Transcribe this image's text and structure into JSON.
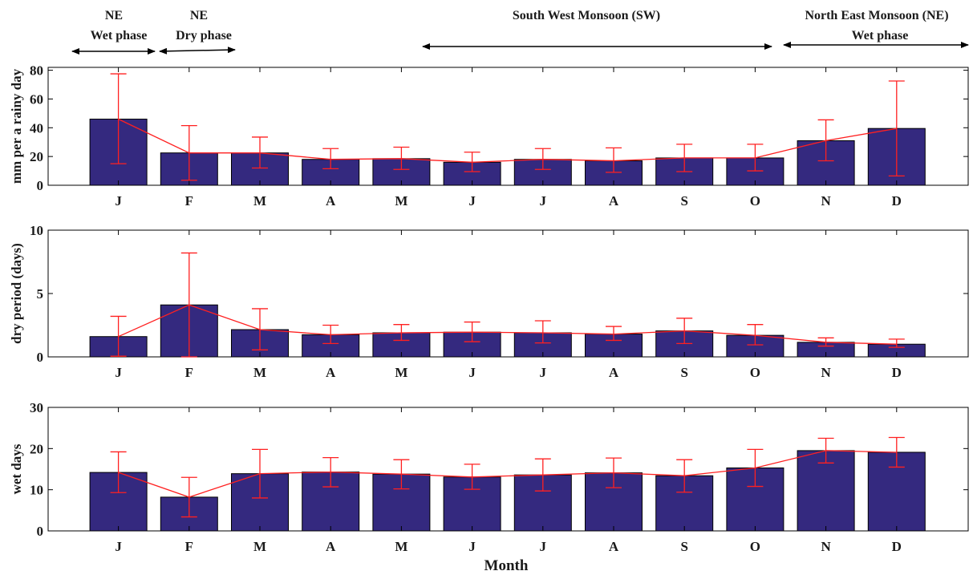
{
  "header": {
    "phases": [
      {
        "lines": [
          "NE",
          "Wet phase"
        ]
      },
      {
        "lines": [
          "NE",
          "Dry phase"
        ]
      },
      {
        "lines": [
          "South West Monsoon (SW)"
        ]
      },
      {
        "lines": [
          "North East Monsoon (NE)",
          "Wet phase"
        ]
      }
    ]
  },
  "colors": {
    "bar": "#34297f",
    "bar_edge": "#000000",
    "line": "#ff2020",
    "axis": "#000000"
  },
  "chart_data": [
    {
      "type": "bar",
      "categories": [
        "J",
        "F",
        "M",
        "A",
        "M",
        "J",
        "J",
        "A",
        "S",
        "O",
        "N",
        "D"
      ],
      "values": [
        46,
        22.5,
        22.5,
        18,
        18.5,
        16,
        18,
        17,
        19,
        19,
        31,
        39.5
      ],
      "error_low": [
        15,
        3.5,
        12,
        11.5,
        11,
        9.5,
        11,
        9,
        9.5,
        10,
        17,
        6.5
      ],
      "error_high": [
        77.5,
        41.5,
        33.5,
        25.5,
        26.5,
        23,
        25.5,
        26,
        28.5,
        28.5,
        45.5,
        72.5
      ],
      "ylabel": "mm per a rainy day",
      "xlabel": "",
      "ylim": [
        0,
        82
      ],
      "yticks": [
        "0",
        "20",
        "40",
        "60",
        "80"
      ],
      "grid": false,
      "legend": "none"
    },
    {
      "type": "bar",
      "categories": [
        "J",
        "F",
        "M",
        "A",
        "M",
        "J",
        "J",
        "A",
        "S",
        "O",
        "N",
        "D"
      ],
      "values": [
        1.6,
        4.1,
        2.15,
        1.75,
        1.9,
        1.95,
        1.9,
        1.8,
        2.05,
        1.7,
        1.15,
        1.0
      ],
      "error_low": [
        0.05,
        0,
        0.55,
        1.05,
        1.3,
        1.2,
        1.1,
        1.3,
        1.05,
        0.95,
        0.85,
        0.75
      ],
      "error_high": [
        3.2,
        8.2,
        3.8,
        2.5,
        2.55,
        2.75,
        2.85,
        2.4,
        3.05,
        2.55,
        1.5,
        1.4
      ],
      "ylabel": "dry period (days)",
      "xlabel": "",
      "ylim": [
        0,
        10
      ],
      "yticks": [
        "0",
        "5",
        "10"
      ],
      "grid": false,
      "legend": "none"
    },
    {
      "type": "bar",
      "categories": [
        "J",
        "F",
        "M",
        "A",
        "M",
        "J",
        "J",
        "A",
        "S",
        "O",
        "N",
        "D"
      ],
      "values": [
        14.2,
        8.2,
        13.9,
        14.3,
        13.8,
        13.1,
        13.6,
        14.1,
        13.4,
        15.3,
        19.5,
        19.1
      ],
      "error_low": [
        9.3,
        3.4,
        8.0,
        10.7,
        10.2,
        10.1,
        9.7,
        10.5,
        9.4,
        10.8,
        16.5,
        15.5
      ],
      "error_high": [
        19.2,
        13.0,
        19.8,
        17.8,
        17.3,
        16.2,
        17.5,
        17.7,
        17.3,
        19.8,
        22.5,
        22.7
      ],
      "ylabel": "wet days",
      "xlabel": "Month",
      "ylim": [
        0,
        30
      ],
      "yticks": [
        "0",
        "10",
        "20",
        "30"
      ],
      "grid": false,
      "legend": "none"
    }
  ]
}
